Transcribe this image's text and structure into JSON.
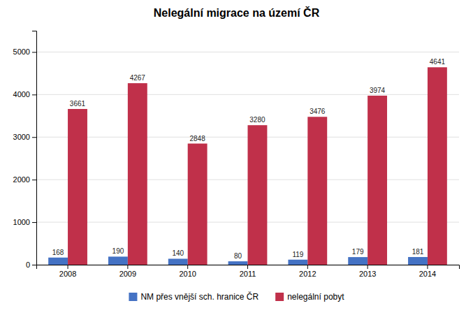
{
  "chart_data": {
    "type": "bar",
    "title": "Nelegální migrace na území ČR",
    "categories": [
      "2008",
      "2009",
      "2010",
      "2011",
      "2012",
      "2013",
      "2014"
    ],
    "series": [
      {
        "name": "NM přes vnější sch. hranice ČR",
        "color": "#4472C4",
        "values": [
          168,
          190,
          140,
          80,
          119,
          179,
          181
        ]
      },
      {
        "name": "nelegální pobyt",
        "color": "#C0304A",
        "values": [
          3661,
          4267,
          2848,
          3280,
          3476,
          3974,
          4641
        ]
      }
    ],
    "ylim": [
      0,
      5500
    ],
    "yticks": [
      0,
      1000,
      2000,
      3000,
      4000,
      5000
    ],
    "grid": true,
    "legend": "bottom",
    "data_labels": true
  }
}
